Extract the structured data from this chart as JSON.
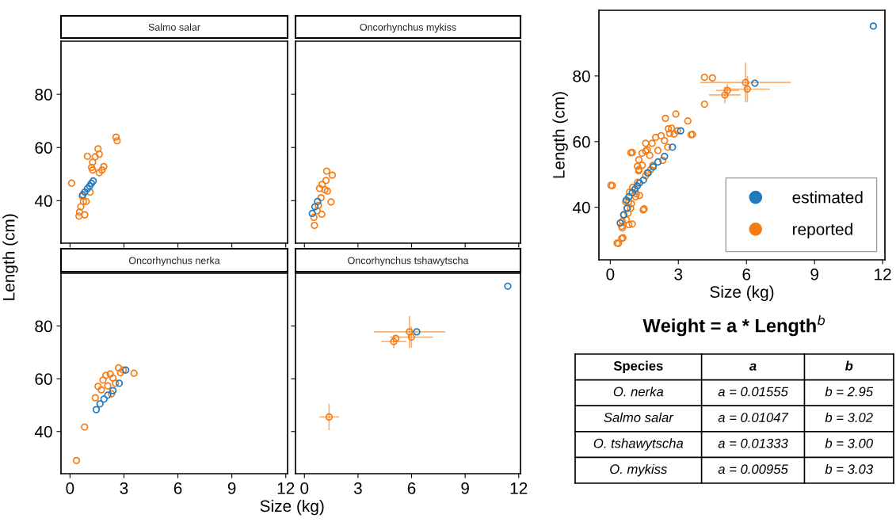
{
  "chart_data": [
    {
      "type": "scatter",
      "title": "Salmo salar",
      "ylabel": "Length (cm)",
      "xlim": [
        -0.5,
        12.1
      ],
      "ylim": [
        24,
        100
      ],
      "xticks": [
        0,
        3,
        6,
        9,
        12
      ],
      "yticks": [
        40,
        60,
        80
      ],
      "tick_labels": "y",
      "marker": "circle",
      "grid": false,
      "series": [
        {
          "color": "#f57c14",
          "x": [
            0.09,
            0.97,
            1.56,
            1.63,
            1.4,
            1.26,
            1.2,
            1.26,
            1.63,
            1.78,
            1.88,
            2.56,
            2.62,
            1.12,
            0.68,
            0.75,
            0.6,
            0.53,
            0.5,
            0.82,
            0.9
          ],
          "values": [
            46.6,
            56.7,
            59.5,
            57.5,
            56.5,
            54.5,
            52.5,
            51.5,
            50.5,
            51.5,
            52.8,
            63.9,
            62.5,
            43.2,
            41.7,
            39.7,
            37.7,
            35.7,
            34.2,
            34.7,
            39.7
          ]
        },
        {
          "color": "#1f7ac0",
          "x": [
            0.71,
            0.82,
            0.97,
            1.09,
            1.19,
            1.29
          ],
          "values": [
            42.2,
            43.2,
            44.5,
            45.5,
            46.5,
            47.4
          ]
        }
      ]
    },
    {
      "type": "scatter",
      "title": "Oncorhynchus mykiss",
      "xlim": [
        -0.5,
        12.1
      ],
      "ylim": [
        24,
        100
      ],
      "xticks": [
        0,
        3,
        6,
        9,
        12
      ],
      "yticks": [
        40,
        60,
        80
      ],
      "tick_labels": false,
      "marker": "circle",
      "grid": false,
      "series": [
        {
          "color": "#f57c14",
          "x": [
            1.25,
            1.56,
            1.21,
            0.99,
            0.85,
            1.15,
            1.29,
            0.93,
            1.49,
            0.78,
            0.97,
            0.71,
            0.53,
            0.56
          ],
          "values": [
            51.1,
            49.6,
            47.6,
            46.1,
            44.6,
            44.1,
            43.6,
            41.1,
            39.5,
            38.2,
            34.9,
            36.2,
            33.7,
            30.7
          ]
        },
        {
          "color": "#1f7ac0",
          "x": [
            0.44,
            0.59,
            0.74
          ],
          "values": [
            35.2,
            37.7,
            39.7
          ]
        }
      ]
    },
    {
      "type": "scatter",
      "title": "Oncorhynchus nerka",
      "xlabel": "Size (kg)",
      "xlim": [
        -0.5,
        12.1
      ],
      "ylim": [
        24,
        100
      ],
      "xticks": [
        0,
        3,
        6,
        9,
        12
      ],
      "yticks": [
        40,
        60,
        80
      ],
      "marker": "circle",
      "grid": false,
      "series": [
        {
          "color": "#f57c14",
          "x": [
            0.36,
            0.81,
            1.41,
            1.56,
            1.84,
            2.0,
            2.24,
            2.7,
            2.96,
            3.56,
            2.31,
            2.53,
            2.1,
            1.74,
            2.81,
            2.39
          ],
          "values": [
            29,
            41.7,
            52.8,
            57.1,
            59.5,
            61.3,
            61.8,
            64.1,
            63.3,
            62.1,
            54.3,
            58.3,
            57.3,
            55.8,
            62.3,
            60.3
          ]
        },
        {
          "color": "#1f7ac0",
          "x": [
            1.46,
            1.67,
            1.89,
            2.1,
            2.39,
            2.74,
            3.1
          ],
          "values": [
            48.3,
            50.5,
            52.3,
            53.8,
            55.5,
            58.3,
            63.3
          ]
        }
      ]
    },
    {
      "type": "scatter",
      "title": "Oncorhynchus tshawytscha",
      "xlim": [
        -0.5,
        12.1
      ],
      "ylim": [
        24,
        100
      ],
      "xticks": [
        0,
        3,
        6,
        9,
        12
      ],
      "yticks": [
        40,
        60,
        80
      ],
      "tick_labels": "x",
      "marker": "circle",
      "grid": false,
      "series": [
        {
          "color": "#f57c14",
          "x": [
            1.38,
            5.88,
            5.99,
            5.12,
            5.0
          ],
          "values": [
            45.5,
            77.8,
            75.8,
            75.3,
            74.1
          ],
          "xerrors": [
            0.55,
            2.0,
            1.2,
            null,
            0.7
          ],
          "errors": [
            5,
            6,
            4,
            null,
            2.5
          ]
        },
        {
          "color": "#1f7ac0",
          "x": [
            6.29,
            11.39
          ],
          "values": [
            77.8,
            95.1
          ]
        }
      ]
    },
    {
      "type": "scatter",
      "xlabel": "Size (kg)",
      "ylabel": "Length (cm)",
      "xlim": [
        -0.5,
        12.1
      ],
      "ylim": [
        24,
        100
      ],
      "xticks": [
        0,
        3,
        6,
        9,
        12
      ],
      "yticks": [
        40,
        60,
        80
      ],
      "marker": "circle",
      "grid": false,
      "legend": "bottom right",
      "series": [
        {
          "name": "estimated",
          "color": "#1f7ac0",
          "x": [
            0.71,
            0.82,
            0.97,
            1.09,
            1.19,
            1.29,
            0.44,
            0.59,
            0.74,
            1.46,
            1.67,
            1.89,
            2.1,
            2.39,
            2.74,
            3.1,
            6.37,
            11.59
          ],
          "values": [
            42.2,
            43.2,
            44.5,
            45.5,
            46.5,
            47.4,
            35.2,
            37.7,
            39.7,
            48.3,
            50.5,
            52.3,
            53.8,
            55.5,
            58.3,
            63.3,
            77.8,
            95.2
          ]
        },
        {
          "name": "reported",
          "color": "#f57c14",
          "x": [
            5.96,
            5.05,
            6.04,
            5.16,
            4.15,
            4.5,
            4.15,
            2.89,
            3.42,
            2.43,
            3.62,
            1.45,
            0.91,
            0.3,
            0.5,
            0.03,
            0.36,
            0.81,
            1.41,
            1.56,
            1.84,
            2.0,
            2.24,
            2.7,
            2.96,
            3.56,
            2.31,
            2.53,
            2.1,
            1.74,
            2.81,
            2.39,
            0.09,
            0.97,
            1.56,
            1.63,
            1.4,
            1.26,
            1.2,
            1.26,
            1.63,
            1.78,
            1.88,
            2.56,
            2.62,
            1.12,
            0.68,
            0.75,
            0.6,
            0.53,
            0.5,
            0.82,
            0.9,
            1.25,
            1.56,
            1.21,
            0.99,
            0.85,
            1.15,
            1.29,
            0.93,
            1.49,
            0.78,
            0.97,
            0.71,
            0.53,
            0.56
          ],
          "values": [
            78,
            74.2,
            76,
            75.6,
            79.6,
            79.4,
            71.4,
            68.4,
            66.3,
            67.1,
            62.2,
            39.2,
            56.6,
            29.1,
            30.5,
            46.7,
            29,
            41.7,
            52.8,
            57.1,
            59.5,
            61.3,
            61.8,
            64.1,
            63.3,
            62.1,
            54.3,
            58.3,
            57.3,
            55.8,
            62.3,
            60.3,
            46.6,
            56.7,
            59.5,
            57.5,
            56.5,
            54.5,
            52.5,
            51.5,
            50.5,
            51.5,
            52.8,
            63.9,
            62.5,
            43.2,
            41.7,
            39.7,
            37.7,
            35.7,
            34.2,
            34.7,
            39.7,
            51.1,
            49.6,
            47.6,
            46.1,
            44.6,
            44.1,
            43.6,
            41.1,
            39.5,
            38.2,
            34.9,
            36.2,
            33.7,
            30.7
          ],
          "xerrors": [
            2.0,
            0.7,
            1.0,
            0.5,
            null,
            null,
            null,
            null,
            null,
            null,
            null,
            null,
            null,
            null,
            null,
            null,
            null,
            null,
            null,
            null,
            null,
            null,
            null,
            null,
            null,
            null,
            null,
            null,
            null,
            null,
            null,
            null,
            null,
            null,
            null,
            null,
            null,
            null,
            null,
            null,
            null,
            null,
            null,
            null,
            null,
            null,
            null,
            null,
            null,
            null,
            null,
            null,
            null,
            null,
            null,
            null,
            null,
            null,
            null,
            null,
            null,
            null,
            null,
            null,
            null,
            null,
            null
          ],
          "errors": [
            6,
            2.5,
            4,
            2,
            null,
            null,
            null,
            null,
            null,
            null,
            null,
            null,
            null,
            null,
            null,
            null,
            null,
            null,
            null,
            null,
            null,
            null,
            null,
            null,
            null,
            null,
            null,
            null,
            null,
            null,
            null,
            null,
            null,
            null,
            null,
            null,
            null,
            null,
            null,
            null,
            null,
            null,
            null,
            null,
            null,
            null,
            null,
            null,
            null,
            null,
            null,
            null,
            null,
            null,
            null,
            null,
            null,
            null,
            null,
            null,
            null,
            null,
            null,
            null,
            null,
            null,
            null
          ]
        }
      ]
    },
    {
      "type": "other",
      "title": "Weight = a * Length$^{b}$",
      "categories": [
        "Species",
        "a",
        "b"
      ],
      "y_categories": [
        "O. nerka",
        "Salmo salar",
        "O. tshawytscha",
        "O. mykiss"
      ],
      "cell_labels": [
        [
          "a = 0.01555",
          "b = 2.95"
        ],
        [
          "a = 0.01047",
          "b = 3.02"
        ],
        [
          "a = 0.01333",
          "b = 3.00"
        ],
        [
          "a = 0.00955",
          "b = 3.03"
        ]
      ]
    }
  ]
}
